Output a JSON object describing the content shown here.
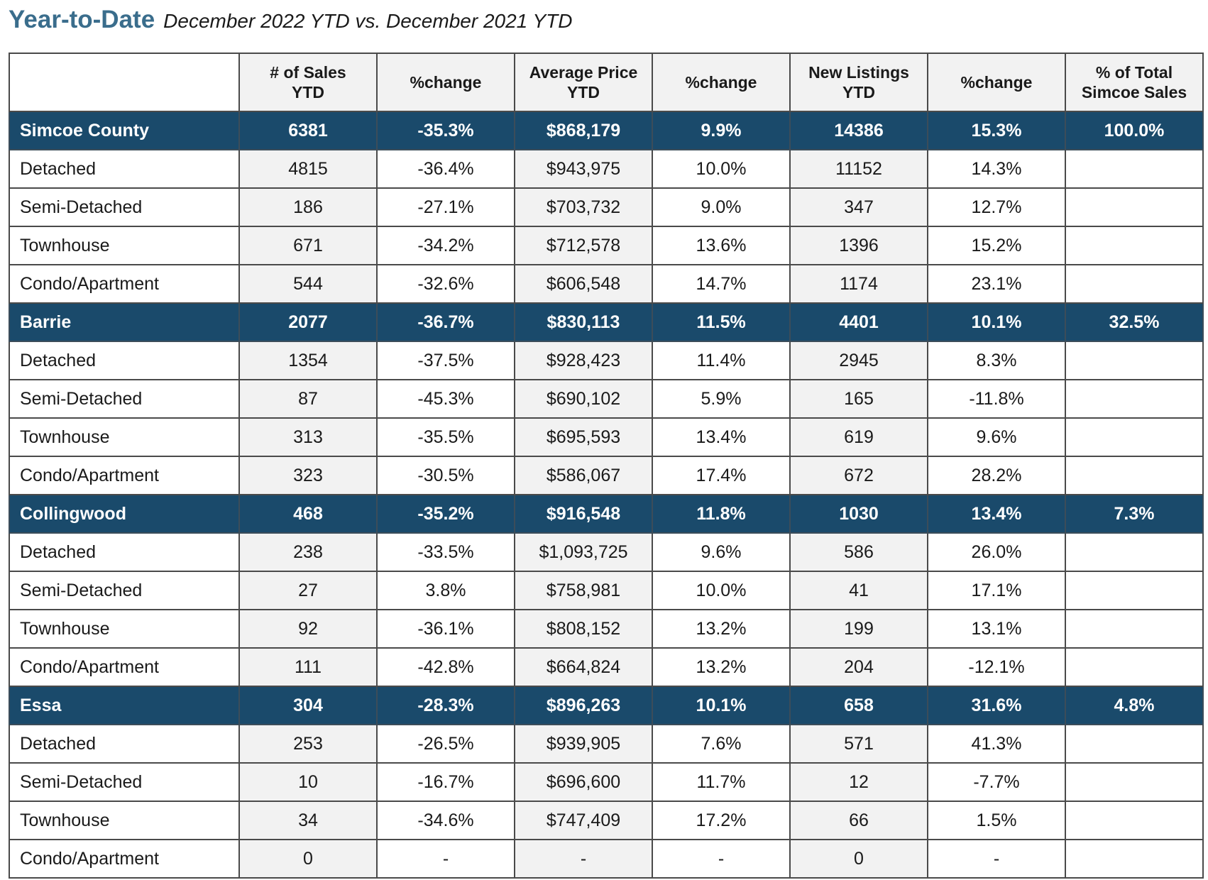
{
  "header": {
    "title": "Year-to-Date",
    "subtitle": "December 2022 YTD vs. December 2021 YTD"
  },
  "columns": [
    "",
    "# of Sales YTD",
    "%change",
    "Average Price YTD",
    "%change",
    "New Listings YTD",
    "%change",
    "% of Total Simcoe Sales"
  ],
  "rows": [
    {
      "type": "region",
      "cells": [
        "Simcoe County",
        "6381",
        "-35.3%",
        "$868,179",
        "9.9%",
        "14386",
        "15.3%",
        "100.0%"
      ]
    },
    {
      "type": "sub",
      "cells": [
        "Detached",
        "4815",
        "-36.4%",
        "$943,975",
        "10.0%",
        "11152",
        "14.3%",
        ""
      ]
    },
    {
      "type": "sub",
      "cells": [
        "Semi-Detached",
        "186",
        "-27.1%",
        "$703,732",
        "9.0%",
        "347",
        "12.7%",
        ""
      ]
    },
    {
      "type": "sub",
      "cells": [
        "Townhouse",
        "671",
        "-34.2%",
        "$712,578",
        "13.6%",
        "1396",
        "15.2%",
        ""
      ]
    },
    {
      "type": "sub",
      "cells": [
        "Condo/Apartment",
        "544",
        "-32.6%",
        "$606,548",
        "14.7%",
        "1174",
        "23.1%",
        ""
      ]
    },
    {
      "type": "region",
      "cells": [
        "Barrie",
        "2077",
        "-36.7%",
        "$830,113",
        "11.5%",
        "4401",
        "10.1%",
        "32.5%"
      ]
    },
    {
      "type": "sub",
      "cells": [
        "Detached",
        "1354",
        "-37.5%",
        "$928,423",
        "11.4%",
        "2945",
        "8.3%",
        ""
      ]
    },
    {
      "type": "sub",
      "cells": [
        "Semi-Detached",
        "87",
        "-45.3%",
        "$690,102",
        "5.9%",
        "165",
        "-11.8%",
        ""
      ]
    },
    {
      "type": "sub",
      "cells": [
        "Townhouse",
        "313",
        "-35.5%",
        "$695,593",
        "13.4%",
        "619",
        "9.6%",
        ""
      ]
    },
    {
      "type": "sub",
      "cells": [
        "Condo/Apartment",
        "323",
        "-30.5%",
        "$586,067",
        "17.4%",
        "672",
        "28.2%",
        ""
      ]
    },
    {
      "type": "region",
      "cells": [
        "Collingwood",
        "468",
        "-35.2%",
        "$916,548",
        "11.8%",
        "1030",
        "13.4%",
        "7.3%"
      ]
    },
    {
      "type": "sub",
      "cells": [
        "Detached",
        "238",
        "-33.5%",
        "$1,093,725",
        "9.6%",
        "586",
        "26.0%",
        ""
      ]
    },
    {
      "type": "sub",
      "cells": [
        "Semi-Detached",
        "27",
        "3.8%",
        "$758,981",
        "10.0%",
        "41",
        "17.1%",
        ""
      ]
    },
    {
      "type": "sub",
      "cells": [
        "Townhouse",
        "92",
        "-36.1%",
        "$808,152",
        "13.2%",
        "199",
        "13.1%",
        ""
      ]
    },
    {
      "type": "sub",
      "cells": [
        "Condo/Apartment",
        "111",
        "-42.8%",
        "$664,824",
        "13.2%",
        "204",
        "-12.1%",
        ""
      ]
    },
    {
      "type": "region",
      "cells": [
        "Essa",
        "304",
        "-28.3%",
        "$896,263",
        "10.1%",
        "658",
        "31.6%",
        "4.8%"
      ]
    },
    {
      "type": "sub",
      "cells": [
        "Detached",
        "253",
        "-26.5%",
        "$939,905",
        "7.6%",
        "571",
        "41.3%",
        ""
      ]
    },
    {
      "type": "sub",
      "cells": [
        "Semi-Detached",
        "10",
        "-16.7%",
        "$696,600",
        "11.7%",
        "12",
        "-7.7%",
        ""
      ]
    },
    {
      "type": "sub",
      "cells": [
        "Townhouse",
        "34",
        "-34.6%",
        "$747,409",
        "17.2%",
        "66",
        "1.5%",
        ""
      ]
    },
    {
      "type": "sub",
      "cells": [
        "Condo/Apartment",
        "0",
        "-",
        "-",
        "-",
        "0",
        "-",
        ""
      ]
    }
  ],
  "colors": {
    "title": "#3a6d8c",
    "region_row_bg": "#1a4a6b",
    "region_row_text": "#ffffff",
    "shaded_cell_bg": "#f2f2f2",
    "border": "#4a4a4a"
  }
}
